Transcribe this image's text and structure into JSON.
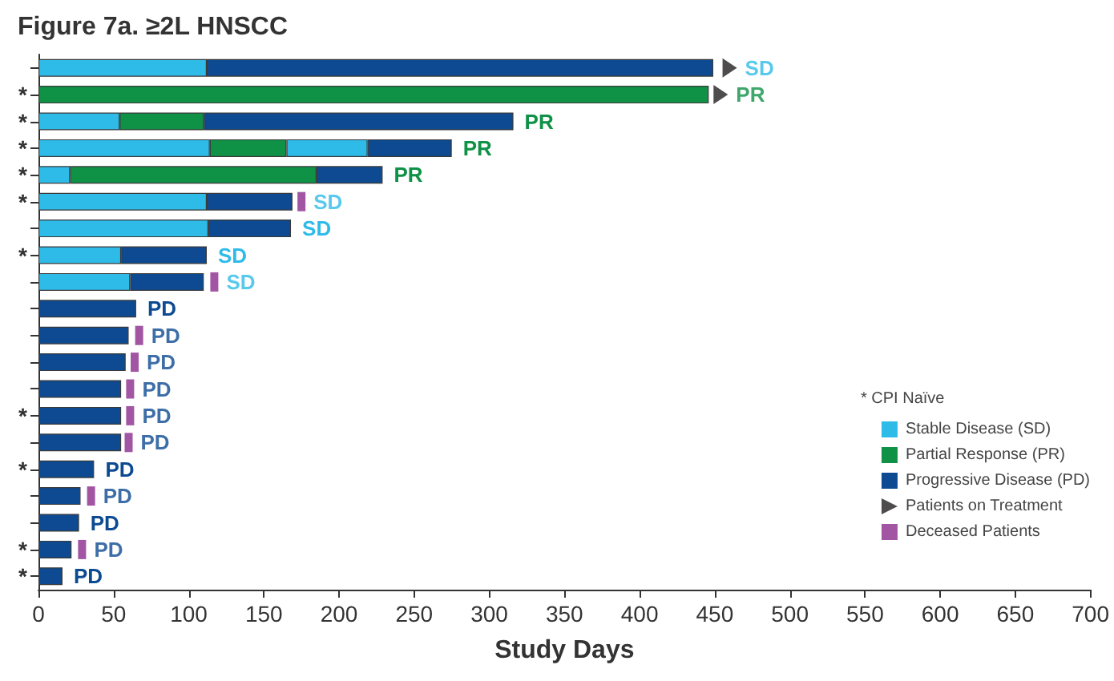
{
  "chart_data": {
    "type": "bar",
    "orientation": "horizontal",
    "stacked": true,
    "title": "Figure 7a. ≥2L HNSCC",
    "xlabel": "Study Days",
    "categories": [
      null,
      "*",
      "*",
      "*",
      "*",
      "*",
      null,
      "*",
      null,
      null,
      null,
      null,
      null,
      "*",
      null,
      "*",
      null,
      null,
      "*",
      "*"
    ],
    "series": [
      {
        "name": "Stable Disease (SD)",
        "color": "#2ebbe8",
        "values": [
          112,
          null,
          54,
          114,
          21,
          112,
          113,
          55,
          61,
          null,
          null,
          null,
          null,
          null,
          null,
          null,
          null,
          null,
          null,
          null
        ]
      },
      {
        "name": "Partial Response (PR)",
        "color": "#0f9146",
        "values": [
          null,
          446,
          56,
          51,
          164,
          null,
          null,
          null,
          null,
          null,
          null,
          null,
          null,
          null,
          null,
          null,
          null,
          null,
          null,
          null
        ]
      },
      {
        "color": "#2ebbe8",
        "values": [
          null,
          null,
          null,
          54,
          null,
          null,
          null,
          null,
          null,
          null,
          null,
          null,
          null,
          null,
          null,
          null,
          null,
          null,
          null,
          null
        ]
      },
      {
        "name": "Progressive Disease (PD)",
        "color": "#0d4a91",
        "values": [
          337,
          null,
          206,
          56,
          44,
          57,
          55,
          57,
          49,
          65,
          60,
          58,
          55,
          55,
          55,
          37,
          28,
          27,
          22,
          16
        ],
        "value_labels": [
          null,
          null,
          "PR",
          "PR",
          "PR",
          null,
          "SD",
          "SD",
          null,
          "PD",
          null,
          null,
          null,
          null,
          null,
          "PD",
          null,
          "PD",
          null,
          "PD"
        ]
      },
      {
        "name": "Patients on Treatment",
        "type": "scatter",
        "marker": "triangle",
        "color": "#231f20",
        "values": [
          460,
          454,
          null,
          null,
          null,
          null,
          null,
          null,
          null,
          null,
          null,
          null,
          null,
          null,
          null,
          null,
          null,
          null,
          null,
          null
        ],
        "value_labels": [
          "SD",
          "PR",
          null,
          null,
          null,
          null,
          null,
          null,
          null,
          null,
          null,
          null,
          null,
          null,
          null,
          null,
          null,
          null,
          null,
          null
        ]
      },
      {
        "name": "Deceased Patients",
        "type": "scatter",
        "marker": "square",
        "color": "#8b2b8c",
        "values": [
          null,
          null,
          null,
          null,
          null,
          175,
          null,
          null,
          117,
          null,
          67,
          64,
          61,
          61,
          60,
          null,
          35,
          null,
          29,
          null
        ],
        "value_labels": [
          null,
          null,
          null,
          null,
          null,
          "SD",
          null,
          null,
          "SD",
          null,
          "PD",
          "PD",
          "PD",
          "PD",
          "PD",
          null,
          "PD",
          null,
          "PD",
          null
        ]
      }
    ],
    "xlim": [
      0,
      700
    ],
    "xticks": [
      0,
      50,
      100,
      150,
      200,
      250,
      300,
      350,
      400,
      450,
      500,
      550,
      600,
      650,
      700
    ],
    "grid": false,
    "legend": "right",
    "annotations": [
      "* CPI Naïve"
    ]
  }
}
